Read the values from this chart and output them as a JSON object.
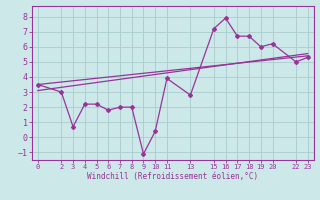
{
  "xlabel": "Windchill (Refroidissement éolien,°C)",
  "background_color": "#cce8e8",
  "grid_color": "#aacccc",
  "line_color": "#993399",
  "xlim": [
    -0.5,
    23.5
  ],
  "ylim": [
    -1.5,
    8.7
  ],
  "xticks": [
    0,
    2,
    3,
    4,
    5,
    6,
    7,
    8,
    9,
    10,
    11,
    13,
    15,
    16,
    17,
    18,
    19,
    20,
    22,
    23
  ],
  "yticks": [
    -1,
    0,
    1,
    2,
    3,
    4,
    5,
    6,
    7,
    8
  ],
  "line1_x": [
    0,
    2,
    3,
    4,
    5,
    6,
    7,
    8,
    9,
    10,
    11,
    13,
    15,
    16,
    17,
    18,
    19,
    20,
    22,
    23
  ],
  "line1_y": [
    3.5,
    3.0,
    0.7,
    2.2,
    2.2,
    1.8,
    2.0,
    2.0,
    -1.1,
    0.4,
    3.9,
    2.8,
    7.2,
    7.9,
    6.7,
    6.7,
    6.0,
    6.2,
    5.0,
    5.3
  ],
  "line2_x": [
    0,
    23
  ],
  "line2_y": [
    3.5,
    5.4
  ],
  "line3_x": [
    0,
    23
  ],
  "line3_y": [
    3.1,
    5.55
  ]
}
